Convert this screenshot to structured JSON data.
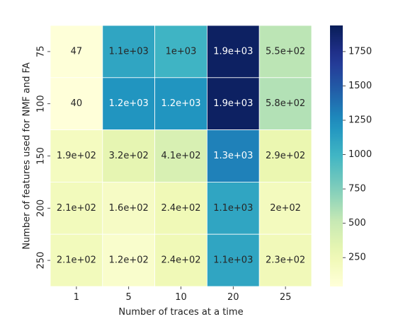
{
  "chart_data": {
    "type": "heatmap",
    "title": "",
    "xlabel": "Number of traces at a time",
    "ylabel": "Number of features used for NMF and FA",
    "x_categories": [
      "1",
      "5",
      "10",
      "20",
      "25"
    ],
    "y_categories": [
      "75",
      "100",
      "150",
      "200",
      "250"
    ],
    "values": [
      [
        47,
        1100,
        1000,
        1900,
        550
      ],
      [
        40,
        1200,
        1200,
        1900,
        580
      ],
      [
        190,
        320,
        410,
        1300,
        290
      ],
      [
        210,
        160,
        240,
        1100,
        200
      ],
      [
        210,
        120,
        240,
        1100,
        230
      ]
    ],
    "cell_labels": [
      [
        "47",
        "1.1e+03",
        "1e+03",
        "1.9e+03",
        "5.5e+02"
      ],
      [
        "40",
        "1.2e+03",
        "1.2e+03",
        "1.9e+03",
        "5.8e+02"
      ],
      [
        "1.9e+02",
        "3.2e+02",
        "4.1e+02",
        "1.3e+03",
        "2.9e+02"
      ],
      [
        "2.1e+02",
        "1.6e+02",
        "2.4e+02",
        "1.1e+03",
        "2e+02"
      ],
      [
        "2.1e+02",
        "1.2e+02",
        "2.4e+02",
        "1.1e+03",
        "2.3e+02"
      ]
    ],
    "colormap": "YlGnBu",
    "colorbar": {
      "min": 40,
      "max": 1940,
      "ticks": [
        250,
        500,
        750,
        1000,
        1250,
        1500,
        1750
      ],
      "tick_labels": [
        "250",
        "500",
        "750",
        "1000",
        "1250",
        "1500",
        "1750"
      ]
    },
    "grid": false
  }
}
